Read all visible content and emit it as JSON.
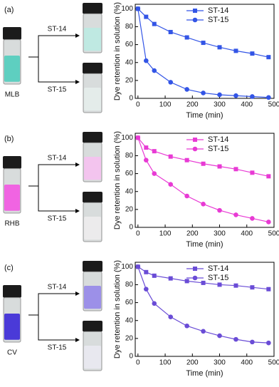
{
  "chart_data": [
    {
      "type": "line",
      "panel_label": "(a)",
      "source_label": "MLB",
      "arrow_labels": [
        "ST-14",
        "ST-15"
      ],
      "xlabel": "Time (min)",
      "ylabel": "Dye retention in solution (%)",
      "x": [
        0,
        30,
        60,
        120,
        180,
        240,
        300,
        360,
        420,
        480
      ],
      "series": [
        {
          "name": "ST-14",
          "color": "#3355e6",
          "marker": "square",
          "values": [
            100,
            91,
            83,
            74,
            68,
            62,
            57,
            53,
            50,
            46
          ]
        },
        {
          "name": "ST-15",
          "color": "#3355e6",
          "marker": "circle",
          "values": [
            100,
            42,
            31,
            18,
            10,
            6,
            4,
            3,
            2,
            1
          ]
        }
      ],
      "xlim": [
        -10,
        500
      ],
      "xticks": [
        0,
        100,
        200,
        300,
        400,
        500
      ],
      "ylim": [
        0,
        105
      ],
      "yticks": [
        0,
        20,
        40,
        60,
        80,
        100
      ],
      "legend": "upper right"
    },
    {
      "type": "line",
      "panel_label": "(b)",
      "source_label": "RHB",
      "arrow_labels": [
        "ST-14",
        "ST-15"
      ],
      "xlabel": "Time (min)",
      "ylabel": "Dye retention in solution (%)",
      "x": [
        0,
        30,
        60,
        120,
        180,
        240,
        300,
        360,
        420,
        480
      ],
      "series": [
        {
          "name": "ST-14",
          "color": "#e83ad4",
          "marker": "square",
          "values": [
            100,
            89,
            85,
            79,
            75,
            71,
            68,
            65,
            61,
            57
          ]
        },
        {
          "name": "ST-15",
          "color": "#e83ad4",
          "marker": "circle",
          "values": [
            100,
            75,
            60,
            48,
            35,
            26,
            19,
            14,
            10,
            6
          ]
        }
      ],
      "xlim": [
        -10,
        500
      ],
      "xticks": [
        0,
        100,
        200,
        300,
        400,
        500
      ],
      "ylim": [
        0,
        105
      ],
      "yticks": [
        0,
        20,
        40,
        60,
        80,
        100
      ],
      "legend": "upper right"
    },
    {
      "type": "line",
      "panel_label": "(c)",
      "source_label": "CV",
      "arrow_labels": [
        "ST-14",
        "ST-15"
      ],
      "xlabel": "Time (min)",
      "ylabel": "Dye retention in solution (%)",
      "x": [
        0,
        30,
        60,
        120,
        180,
        240,
        300,
        360,
        420,
        480
      ],
      "series": [
        {
          "name": "ST-14",
          "color": "#6a4cd6",
          "marker": "square",
          "values": [
            100,
            94,
            90,
            87,
            84,
            82,
            80,
            79,
            77,
            75
          ]
        },
        {
          "name": "ST-15",
          "color": "#6a4cd6",
          "marker": "circle",
          "values": [
            100,
            75,
            59,
            44,
            34,
            28,
            23,
            19,
            16,
            15
          ]
        }
      ],
      "xlim": [
        -10,
        500
      ],
      "xticks": [
        0,
        100,
        200,
        300,
        400,
        500
      ],
      "ylim": [
        0,
        105
      ],
      "yticks": [
        0,
        20,
        40,
        60,
        80,
        100
      ],
      "legend": "upper right"
    }
  ]
}
